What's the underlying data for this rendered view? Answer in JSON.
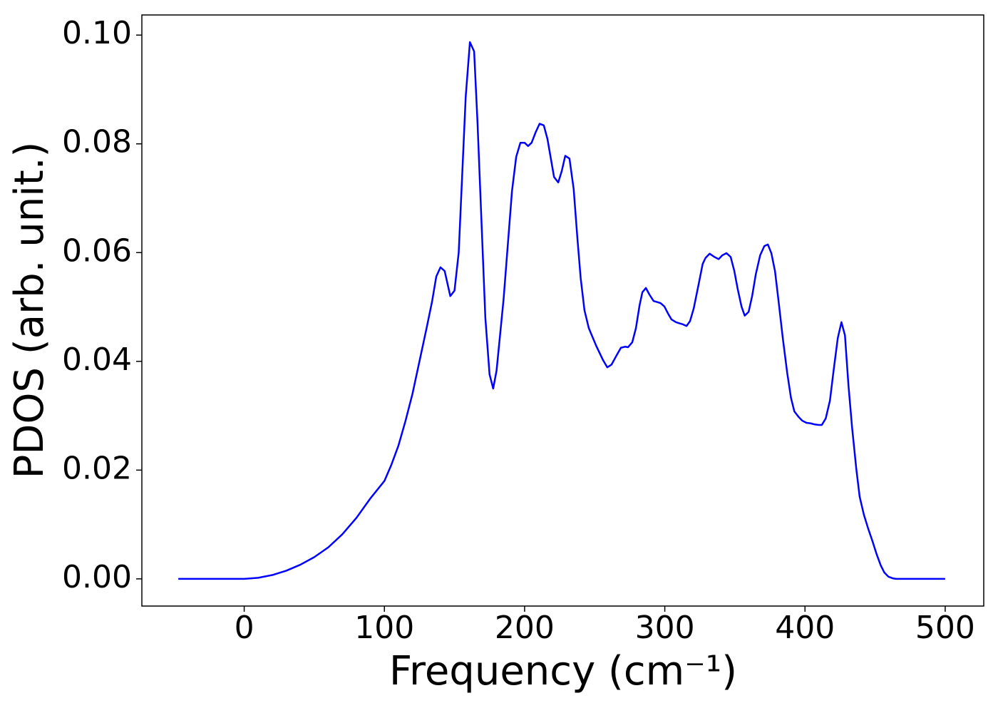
{
  "chart_data": {
    "type": "line",
    "xlabel": "Frequency (cm⁻¹)",
    "ylabel": "PDOS (arb. unit.)",
    "x": [
      -47,
      0,
      10,
      20,
      30,
      40,
      50,
      60,
      70,
      80,
      90,
      100,
      105,
      110,
      115,
      120,
      125,
      130,
      134,
      137,
      140,
      143,
      147,
      150,
      153,
      158,
      161,
      164,
      166.4,
      172,
      175,
      177.6,
      180,
      185,
      191,
      194,
      197,
      200,
      202.5,
      205,
      208,
      210.7,
      213.7,
      216.3,
      221,
      224,
      226.5,
      229,
      232,
      235,
      237.7,
      240,
      242.7,
      245.8,
      251,
      256,
      259,
      262,
      265.6,
      268.7,
      271.8,
      273.8,
      276.8,
      279.4,
      282,
      284,
      286.5,
      289,
      292,
      294.7,
      297,
      299.7,
      302.3,
      304.8,
      308,
      310.4,
      313,
      315.5,
      318,
      320.6,
      324,
      327,
      329,
      332,
      335.4,
      338.4,
      341,
      344,
      347,
      349.6,
      352,
      354.7,
      357,
      359.8,
      362.3,
      364.9,
      368,
      371,
      373.5,
      376,
      378.6,
      381,
      384.2,
      387.3,
      390,
      392.4,
      395.4,
      398,
      401,
      404,
      407,
      409.7,
      412,
      414.8,
      417.8,
      420.4,
      423.4,
      426,
      428.5,
      431,
      433.6,
      436.6,
      439,
      442,
      445,
      448.3,
      451,
      454,
      456.5,
      459.5,
      462.6,
      465,
      500
    ],
    "series": [
      {
        "name": "PDOS",
        "color": "#0000ff",
        "values": [
          0,
          0,
          0.0002,
          0.0007,
          0.0015,
          0.0026,
          0.004,
          0.0058,
          0.0082,
          0.0112,
          0.0148,
          0.018,
          0.021,
          0.0245,
          0.029,
          0.034,
          0.04,
          0.046,
          0.051,
          0.0556,
          0.0573,
          0.0566,
          0.052,
          0.053,
          0.06,
          0.0887,
          0.0987,
          0.097,
          0.084,
          0.048,
          0.0376,
          0.035,
          0.0383,
          0.0514,
          0.0713,
          0.0776,
          0.0802,
          0.0802,
          0.0796,
          0.0802,
          0.0822,
          0.0837,
          0.0834,
          0.0809,
          0.0739,
          0.0729,
          0.075,
          0.0778,
          0.0773,
          0.0717,
          0.0625,
          0.0553,
          0.0494,
          0.0461,
          0.0429,
          0.0402,
          0.0389,
          0.0394,
          0.0411,
          0.0425,
          0.0427,
          0.0426,
          0.0435,
          0.0461,
          0.0503,
          0.0527,
          0.0535,
          0.0523,
          0.0511,
          0.0509,
          0.0507,
          0.0501,
          0.0488,
          0.0477,
          0.0472,
          0.047,
          0.0468,
          0.0465,
          0.0474,
          0.0497,
          0.054,
          0.0579,
          0.059,
          0.0598,
          0.0592,
          0.0588,
          0.0595,
          0.0599,
          0.0592,
          0.0566,
          0.0533,
          0.0501,
          0.0484,
          0.0491,
          0.052,
          0.056,
          0.0595,
          0.0612,
          0.0615,
          0.0599,
          0.0566,
          0.0514,
          0.0442,
          0.0379,
          0.0333,
          0.0308,
          0.0298,
          0.0291,
          0.0287,
          0.0286,
          0.0284,
          0.0283,
          0.0283,
          0.0295,
          0.0328,
          0.0383,
          0.0443,
          0.0472,
          0.0448,
          0.0356,
          0.0278,
          0.0202,
          0.0151,
          0.0118,
          0.0093,
          0.0068,
          0.0046,
          0.0025,
          0.0012,
          0.0004,
          0.0001,
          0,
          0
        ]
      }
    ],
    "xlim": [
      -73,
      527.5
    ],
    "ylim": [
      -0.005,
      0.1037
    ],
    "xticks": [
      0,
      100,
      200,
      300,
      400,
      500
    ],
    "yticks": [
      {
        "value": 0,
        "label": "0.00"
      },
      {
        "value": 0.02,
        "label": "0.02"
      },
      {
        "value": 0.04,
        "label": "0.04"
      },
      {
        "value": 0.06,
        "label": "0.06"
      },
      {
        "value": 0.08,
        "label": "0.08"
      },
      {
        "value": 0.1,
        "label": "0.10"
      }
    ],
    "grid": false
  }
}
